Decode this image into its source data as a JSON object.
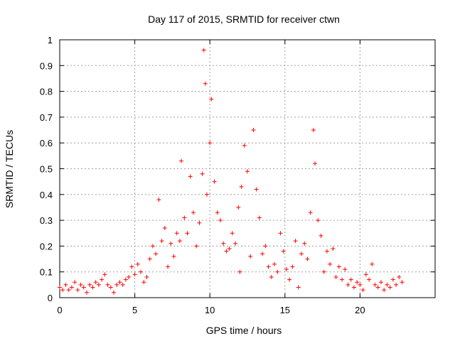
{
  "chart_data": {
    "type": "scatter",
    "title": "Day 117 of 2015, SRMTID for receiver ctwn",
    "xlabel": "GPS time / hours",
    "ylabel": "SRMTID / TECUs",
    "xlim": [
      0,
      25
    ],
    "ylim": [
      0,
      1
    ],
    "xticks": [
      0,
      5,
      10,
      15,
      20
    ],
    "xtick_labels": [
      "0",
      "5",
      "10",
      "15",
      "20"
    ],
    "yticks": [
      0,
      0.1,
      0.2,
      0.3,
      0.4,
      0.5,
      0.6,
      0.7,
      0.8,
      0.9,
      1
    ],
    "ytick_labels": [
      "0",
      "0.1",
      "0.2",
      "0.3",
      "0.4",
      "0.5",
      "0.6",
      "0.7",
      "0.8",
      "0.9",
      "1"
    ],
    "grid": true,
    "marker": "+",
    "color": "#ff0000",
    "series": [
      {
        "name": "SRMTID",
        "points": [
          [
            0.0,
            0.04
          ],
          [
            0.2,
            0.03
          ],
          [
            0.4,
            0.05
          ],
          [
            0.6,
            0.03
          ],
          [
            0.8,
            0.04
          ],
          [
            1.0,
            0.06
          ],
          [
            1.2,
            0.03
          ],
          [
            1.4,
            0.05
          ],
          [
            1.6,
            0.04
          ],
          [
            1.8,
            0.02
          ],
          [
            2.0,
            0.05
          ],
          [
            2.2,
            0.04
          ],
          [
            2.4,
            0.06
          ],
          [
            2.6,
            0.05
          ],
          [
            2.8,
            0.07
          ],
          [
            3.0,
            0.09
          ],
          [
            3.2,
            0.05
          ],
          [
            3.4,
            0.04
          ],
          [
            3.6,
            0.02
          ],
          [
            3.8,
            0.05
          ],
          [
            4.0,
            0.06
          ],
          [
            4.2,
            0.05
          ],
          [
            4.4,
            0.07
          ],
          [
            4.6,
            0.08
          ],
          [
            4.8,
            0.12
          ],
          [
            5.0,
            0.09
          ],
          [
            5.2,
            0.13
          ],
          [
            5.4,
            0.1
          ],
          [
            5.6,
            0.06
          ],
          [
            5.8,
            0.08
          ],
          [
            6.0,
            0.15
          ],
          [
            6.2,
            0.2
          ],
          [
            6.4,
            0.17
          ],
          [
            6.6,
            0.38
          ],
          [
            6.8,
            0.22
          ],
          [
            7.0,
            0.27
          ],
          [
            7.2,
            0.12
          ],
          [
            7.4,
            0.21
          ],
          [
            7.6,
            0.16
          ],
          [
            7.8,
            0.25
          ],
          [
            8.0,
            0.22
          ],
          [
            8.1,
            0.53
          ],
          [
            8.3,
            0.31
          ],
          [
            8.5,
            0.25
          ],
          [
            8.7,
            0.47
          ],
          [
            8.9,
            0.33
          ],
          [
            9.1,
            0.2
          ],
          [
            9.3,
            0.29
          ],
          [
            9.5,
            0.48
          ],
          [
            9.6,
            0.96
          ],
          [
            9.7,
            0.83
          ],
          [
            9.8,
            0.4
          ],
          [
            10.0,
            0.6
          ],
          [
            10.1,
            0.77
          ],
          [
            10.3,
            0.45
          ],
          [
            10.5,
            0.33
          ],
          [
            10.7,
            0.3
          ],
          [
            10.9,
            0.21
          ],
          [
            11.1,
            0.18
          ],
          [
            11.3,
            0.19
          ],
          [
            11.5,
            0.25
          ],
          [
            11.7,
            0.21
          ],
          [
            11.9,
            0.35
          ],
          [
            12.0,
            0.1
          ],
          [
            12.1,
            0.43
          ],
          [
            12.3,
            0.59
          ],
          [
            12.5,
            0.49
          ],
          [
            12.7,
            0.16
          ],
          [
            12.9,
            0.65
          ],
          [
            13.1,
            0.42
          ],
          [
            13.3,
            0.31
          ],
          [
            13.5,
            0.17
          ],
          [
            13.7,
            0.2
          ],
          [
            13.9,
            0.12
          ],
          [
            14.1,
            0.08
          ],
          [
            14.3,
            0.13
          ],
          [
            14.5,
            0.1
          ],
          [
            14.7,
            0.25
          ],
          [
            14.9,
            0.18
          ],
          [
            15.1,
            0.11
          ],
          [
            15.3,
            0.07
          ],
          [
            15.5,
            0.12
          ],
          [
            15.7,
            0.22
          ],
          [
            15.9,
            0.04
          ],
          [
            16.1,
            0.17
          ],
          [
            16.3,
            0.21
          ],
          [
            16.5,
            0.15
          ],
          [
            16.7,
            0.33
          ],
          [
            16.9,
            0.65
          ],
          [
            17.0,
            0.52
          ],
          [
            17.2,
            0.3
          ],
          [
            17.4,
            0.24
          ],
          [
            17.6,
            0.1
          ],
          [
            17.8,
            0.18
          ],
          [
            18.0,
            0.13
          ],
          [
            18.2,
            0.19
          ],
          [
            18.4,
            0.08
          ],
          [
            18.6,
            0.12
          ],
          [
            18.8,
            0.07
          ],
          [
            19.0,
            0.11
          ],
          [
            19.2,
            0.05
          ],
          [
            19.4,
            0.07
          ],
          [
            19.6,
            0.04
          ],
          [
            19.8,
            0.06
          ],
          [
            20.0,
            0.05
          ],
          [
            20.2,
            0.03
          ],
          [
            20.4,
            0.09
          ],
          [
            20.6,
            0.07
          ],
          [
            20.8,
            0.13
          ],
          [
            21.0,
            0.05
          ],
          [
            21.2,
            0.04
          ],
          [
            21.4,
            0.06
          ],
          [
            21.6,
            0.03
          ],
          [
            21.8,
            0.05
          ],
          [
            22.0,
            0.04
          ],
          [
            22.2,
            0.07
          ],
          [
            22.4,
            0.05
          ],
          [
            22.6,
            0.08
          ],
          [
            22.8,
            0.06
          ]
        ]
      }
    ]
  }
}
